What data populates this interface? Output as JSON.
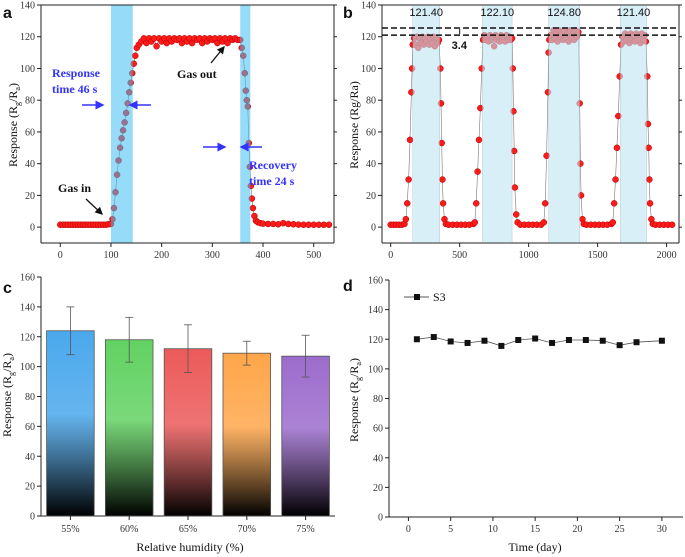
{
  "chart_data": [
    {
      "panel": "a",
      "type": "scatter",
      "xlim": [
        -38,
        540
      ],
      "ylim": [
        -10,
        140
      ],
      "xticks": [
        0,
        100,
        200,
        300,
        400,
        500
      ],
      "yticks": [
        0,
        20,
        40,
        60,
        80,
        100,
        120,
        140
      ],
      "ylabel": {
        "pre": "Response (R",
        "sub1": "g",
        "mid": "/R",
        "sub2": "a",
        "post": ")"
      },
      "shaded_ranges": [
        [
          100,
          143
        ],
        [
          355,
          375
        ]
      ],
      "colors": {
        "marker": "#ff1a1a",
        "shade": "#3fbdf0",
        "annotation": "#3333ff"
      },
      "annotations": {
        "response_1": "Response",
        "response_2": "time 46 s",
        "recovery_1": "Recovery",
        "recovery_2": "time 24 s",
        "gas_in": "Gas in",
        "gas_out": "Gas out"
      },
      "points": [
        [
          0,
          1.5
        ],
        [
          5,
          1.5
        ],
        [
          10,
          1.5
        ],
        [
          15,
          1.5
        ],
        [
          20,
          1.5
        ],
        [
          25,
          1.5
        ],
        [
          30,
          1.5
        ],
        [
          35,
          1.5
        ],
        [
          40,
          1.5
        ],
        [
          45,
          1.5
        ],
        [
          50,
          1.5
        ],
        [
          55,
          1.5
        ],
        [
          60,
          1.5
        ],
        [
          65,
          1.5
        ],
        [
          70,
          1.5
        ],
        [
          75,
          1.5
        ],
        [
          80,
          1.5
        ],
        [
          85,
          1.5
        ],
        [
          90,
          1.5
        ],
        [
          95,
          1.8
        ],
        [
          100,
          2
        ],
        [
          103,
          5
        ],
        [
          106,
          12
        ],
        [
          109,
          22
        ],
        [
          112,
          33
        ],
        [
          115,
          42
        ],
        [
          118,
          50
        ],
        [
          121,
          56
        ],
        [
          124,
          61
        ],
        [
          127,
          66
        ],
        [
          130,
          72
        ],
        [
          133,
          78
        ],
        [
          136,
          85
        ],
        [
          139,
          91
        ],
        [
          142,
          97
        ],
        [
          145,
          103
        ],
        [
          148,
          108
        ],
        [
          151,
          113
        ],
        [
          155,
          115
        ],
        [
          160,
          117
        ],
        [
          165,
          119
        ],
        [
          170,
          116
        ],
        [
          175,
          119
        ],
        [
          180,
          117
        ],
        [
          185,
          119
        ],
        [
          190,
          114
        ],
        [
          195,
          119
        ],
        [
          200,
          117
        ],
        [
          205,
          119
        ],
        [
          210,
          116
        ],
        [
          215,
          119
        ],
        [
          220,
          117
        ],
        [
          225,
          119
        ],
        [
          230,
          118
        ],
        [
          235,
          119
        ],
        [
          240,
          116
        ],
        [
          245,
          119
        ],
        [
          250,
          117
        ],
        [
          255,
          119
        ],
        [
          260,
          116
        ],
        [
          265,
          119
        ],
        [
          270,
          118
        ],
        [
          275,
          119
        ],
        [
          280,
          116
        ],
        [
          285,
          119
        ],
        [
          290,
          117
        ],
        [
          295,
          119
        ],
        [
          300,
          118
        ],
        [
          305,
          119
        ],
        [
          310,
          116
        ],
        [
          315,
          119
        ],
        [
          320,
          117
        ],
        [
          325,
          119
        ],
        [
          330,
          116
        ],
        [
          335,
          119
        ],
        [
          340,
          118
        ],
        [
          345,
          119
        ],
        [
          350,
          118
        ],
        [
          355,
          118
        ],
        [
          358,
          113
        ],
        [
          361,
          108
        ],
        [
          364,
          97
        ],
        [
          366,
          86
        ],
        [
          368,
          80
        ],
        [
          370,
          76
        ],
        [
          372,
          53
        ],
        [
          374,
          38
        ],
        [
          376,
          26
        ],
        [
          378,
          18
        ],
        [
          380,
          12
        ],
        [
          383,
          7
        ],
        [
          386,
          4
        ],
        [
          390,
          3
        ],
        [
          395,
          2.5
        ],
        [
          400,
          2.2
        ],
        [
          410,
          2
        ],
        [
          420,
          2
        ],
        [
          430,
          1.8
        ],
        [
          440,
          2.5
        ],
        [
          450,
          2
        ],
        [
          460,
          1.8
        ],
        [
          470,
          1.6
        ],
        [
          480,
          1.5
        ],
        [
          490,
          1.5
        ],
        [
          500,
          1.5
        ],
        [
          510,
          1.5
        ],
        [
          520,
          1.5
        ],
        [
          530,
          1.5
        ]
      ]
    },
    {
      "panel": "b",
      "type": "scatter",
      "xlim": [
        -63,
        2090
      ],
      "ylim": [
        -10,
        140
      ],
      "xticks": [
        0,
        500,
        1000,
        1500,
        2000
      ],
      "yticks": [
        0,
        20,
        40,
        60,
        80,
        100,
        120,
        140
      ],
      "ylabel": "Response (Rg/Ra)",
      "shaded_ranges": [
        [
          160,
          355
        ],
        [
          665,
          880
        ],
        [
          1145,
          1370
        ],
        [
          1665,
          1855
        ]
      ],
      "peak_labels": [
        "121.40",
        "122.10",
        "124.80",
        "121.40"
      ],
      "reference_lines": [
        125.5,
        121
      ],
      "difference_label": "3.4",
      "colors": {
        "marker": "#ff1a1a",
        "shade": "#bfe6f5"
      },
      "points": [
        [
          0,
          1.5
        ],
        [
          20,
          1.5
        ],
        [
          40,
          1.5
        ],
        [
          60,
          1.5
        ],
        [
          80,
          1.5
        ],
        [
          100,
          2
        ],
        [
          110,
          5
        ],
        [
          120,
          15
        ],
        [
          130,
          30
        ],
        [
          140,
          55
        ],
        [
          150,
          85
        ],
        [
          155,
          100
        ],
        [
          160,
          115
        ],
        [
          170,
          119
        ],
        [
          180,
          115
        ],
        [
          190,
          120
        ],
        [
          200,
          113
        ],
        [
          210,
          119
        ],
        [
          220,
          116
        ],
        [
          230,
          120
        ],
        [
          240,
          115
        ],
        [
          250,
          119
        ],
        [
          260,
          117
        ],
        [
          270,
          120
        ],
        [
          280,
          115
        ],
        [
          290,
          119
        ],
        [
          300,
          116
        ],
        [
          310,
          120
        ],
        [
          320,
          114
        ],
        [
          330,
          119
        ],
        [
          340,
          116
        ],
        [
          350,
          118
        ],
        [
          360,
          100
        ],
        [
          365,
          78
        ],
        [
          370,
          53
        ],
        [
          375,
          30
        ],
        [
          380,
          15
        ],
        [
          390,
          5
        ],
        [
          400,
          2
        ],
        [
          420,
          1.5
        ],
        [
          450,
          1.5
        ],
        [
          480,
          1.5
        ],
        [
          510,
          1.5
        ],
        [
          540,
          1.5
        ],
        [
          570,
          1.5
        ],
        [
          600,
          2
        ],
        [
          610,
          3
        ],
        [
          620,
          15
        ],
        [
          630,
          35
        ],
        [
          640,
          55
        ],
        [
          650,
          75
        ],
        [
          660,
          100
        ],
        [
          670,
          118
        ],
        [
          680,
          121
        ],
        [
          690,
          118
        ],
        [
          700,
          120
        ],
        [
          710,
          117
        ],
        [
          720,
          121
        ],
        [
          730,
          118
        ],
        [
          740,
          120
        ],
        [
          750,
          114
        ],
        [
          760,
          121
        ],
        [
          770,
          118
        ],
        [
          780,
          120
        ],
        [
          790,
          117
        ],
        [
          800,
          121
        ],
        [
          810,
          118
        ],
        [
          820,
          120
        ],
        [
          830,
          117
        ],
        [
          840,
          121
        ],
        [
          850,
          118
        ],
        [
          860,
          120
        ],
        [
          870,
          118
        ],
        [
          880,
          119
        ],
        [
          885,
          100
        ],
        [
          890,
          73
        ],
        [
          895,
          48
        ],
        [
          900,
          25
        ],
        [
          910,
          8
        ],
        [
          920,
          3
        ],
        [
          940,
          1.5
        ],
        [
          970,
          1.5
        ],
        [
          1000,
          1.5
        ],
        [
          1030,
          1.5
        ],
        [
          1060,
          1.5
        ],
        [
          1090,
          1.5
        ],
        [
          1110,
          3
        ],
        [
          1120,
          15
        ],
        [
          1130,
          45
        ],
        [
          1140,
          85
        ],
        [
          1145,
          110
        ],
        [
          1150,
          118
        ],
        [
          1160,
          121
        ],
        [
          1170,
          118
        ],
        [
          1180,
          124
        ],
        [
          1190,
          119
        ],
        [
          1200,
          122
        ],
        [
          1210,
          117
        ],
        [
          1220,
          124
        ],
        [
          1230,
          120
        ],
        [
          1240,
          122
        ],
        [
          1250,
          118
        ],
        [
          1260,
          124
        ],
        [
          1270,
          119
        ],
        [
          1280,
          122
        ],
        [
          1290,
          117
        ],
        [
          1300,
          124
        ],
        [
          1310,
          119
        ],
        [
          1320,
          122
        ],
        [
          1330,
          118
        ],
        [
          1340,
          124
        ],
        [
          1350,
          120
        ],
        [
          1360,
          123
        ],
        [
          1370,
          78
        ],
        [
          1375,
          40
        ],
        [
          1380,
          20
        ],
        [
          1390,
          5
        ],
        [
          1400,
          2
        ],
        [
          1420,
          1.5
        ],
        [
          1450,
          1.5
        ],
        [
          1480,
          1.5
        ],
        [
          1510,
          1.5
        ],
        [
          1540,
          1.5
        ],
        [
          1570,
          1.5
        ],
        [
          1600,
          2
        ],
        [
          1610,
          3
        ],
        [
          1620,
          15
        ],
        [
          1630,
          30
        ],
        [
          1640,
          50
        ],
        [
          1650,
          70
        ],
        [
          1660,
          95
        ],
        [
          1670,
          115
        ],
        [
          1680,
          120
        ],
        [
          1690,
          117
        ],
        [
          1700,
          122
        ],
        [
          1710,
          118
        ],
        [
          1720,
          121
        ],
        [
          1730,
          116
        ],
        [
          1740,
          122
        ],
        [
          1750,
          118
        ],
        [
          1760,
          121
        ],
        [
          1770,
          117
        ],
        [
          1780,
          122
        ],
        [
          1790,
          118
        ],
        [
          1800,
          121
        ],
        [
          1810,
          116
        ],
        [
          1820,
          122
        ],
        [
          1830,
          118
        ],
        [
          1840,
          121
        ],
        [
          1850,
          117
        ],
        [
          1860,
          95
        ],
        [
          1865,
          65
        ],
        [
          1870,
          50
        ],
        [
          1875,
          30
        ],
        [
          1880,
          15
        ],
        [
          1890,
          5
        ],
        [
          1900,
          2
        ],
        [
          1920,
          1.5
        ],
        [
          1950,
          1.5
        ],
        [
          1980,
          1.5
        ],
        [
          2010,
          1.5
        ],
        [
          2040,
          1.5
        ]
      ]
    },
    {
      "panel": "c",
      "type": "bar",
      "ylim": [
        0,
        160
      ],
      "yticks": [
        0,
        20,
        40,
        60,
        80,
        100,
        120,
        140,
        160
      ],
      "categories": [
        "55%",
        "60%",
        "65%",
        "70%",
        "75%"
      ],
      "values": [
        124,
        118,
        112,
        109,
        107
      ],
      "error_low": [
        108,
        103,
        96,
        101,
        93
      ],
      "error_high": [
        140,
        133,
        128,
        117,
        121
      ],
      "bar_colors": [
        "#4aa8ec",
        "#62d262",
        "#ec5a5a",
        "#ffa64a",
        "#9c6ccc"
      ],
      "xlabel": "Relative humidity (%)",
      "ylabel": {
        "pre": "Response (R",
        "sub1": "g",
        "mid": "/R",
        "sub2": "a",
        "post": ")"
      }
    },
    {
      "panel": "d",
      "type": "line",
      "xlim": [
        -2.3,
        32.5
      ],
      "ylim": [
        0,
        160
      ],
      "xticks": [
        0,
        5,
        10,
        15,
        20,
        25,
        30
      ],
      "yticks": [
        0,
        20,
        40,
        60,
        80,
        100,
        120,
        140,
        160
      ],
      "series": [
        {
          "name": "S3",
          "x": [
            1,
            3,
            5,
            7,
            9,
            11,
            13,
            15,
            17,
            19,
            21,
            23,
            25,
            27,
            30
          ],
          "y": [
            120,
            121.5,
            118.5,
            117.5,
            119,
            115.5,
            119.5,
            120.5,
            117.5,
            119.5,
            119.5,
            119,
            116,
            118,
            119
          ]
        }
      ],
      "legend": "top-left",
      "xlabel": "Time (day)",
      "ylabel": {
        "pre": "Response (R",
        "sub1": "g",
        "mid": "/R",
        "sub2": "a",
        "post": ")"
      }
    }
  ],
  "panel_letters": [
    "a",
    "b",
    "c",
    "d"
  ]
}
